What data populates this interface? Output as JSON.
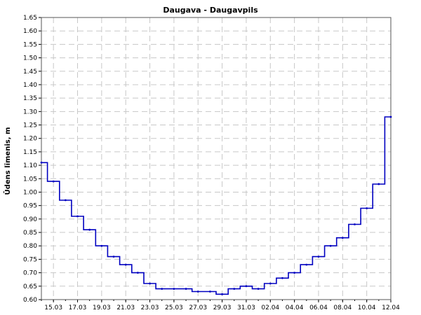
{
  "chart_data": {
    "type": "line",
    "title": "Daugava - Daugavpils",
    "xlabel": "",
    "ylabel": "Ūdens līmenis, m",
    "x_tick_labels": [
      "15.03",
      "17.03",
      "19.03",
      "21.03",
      "23.03",
      "25.03",
      "27.03",
      "29.03",
      "31.03",
      "02.04",
      "04.04",
      "06.04",
      "08.04",
      "10.04",
      "12.04"
    ],
    "y_tick_labels": [
      "0.60",
      "0.65",
      "0.70",
      "0.75",
      "0.80",
      "0.85",
      "0.90",
      "0.95",
      "1.00",
      "1.05",
      "1.10",
      "1.15",
      "1.20",
      "1.25",
      "1.30",
      "1.35",
      "1.40",
      "1.45",
      "1.50",
      "1.55",
      "1.60",
      "1.65"
    ],
    "ylim": [
      0.6,
      1.65
    ],
    "xlim": [
      "14.03",
      "12.04"
    ],
    "grid": true,
    "series": [
      {
        "color": "#0000c0",
        "x": [
          "14.03",
          "15.03",
          "16.03",
          "17.03",
          "18.03",
          "19.03",
          "20.03",
          "21.03",
          "22.03",
          "23.03",
          "24.03",
          "25.03",
          "26.03",
          "27.03",
          "28.03",
          "29.03",
          "30.03",
          "31.03",
          "01.04",
          "02.04",
          "03.04",
          "04.04",
          "05.04",
          "06.04",
          "07.04",
          "08.04",
          "09.04",
          "10.04",
          "11.04",
          "12.04"
        ],
        "values": [
          1.11,
          1.04,
          0.97,
          0.91,
          0.86,
          0.8,
          0.76,
          0.73,
          0.7,
          0.66,
          0.64,
          0.64,
          0.64,
          0.63,
          0.63,
          0.62,
          0.64,
          0.65,
          0.64,
          0.66,
          0.68,
          0.7,
          0.73,
          0.76,
          0.8,
          0.83,
          0.88,
          0.94,
          1.03,
          1.28
        ]
      }
    ]
  }
}
